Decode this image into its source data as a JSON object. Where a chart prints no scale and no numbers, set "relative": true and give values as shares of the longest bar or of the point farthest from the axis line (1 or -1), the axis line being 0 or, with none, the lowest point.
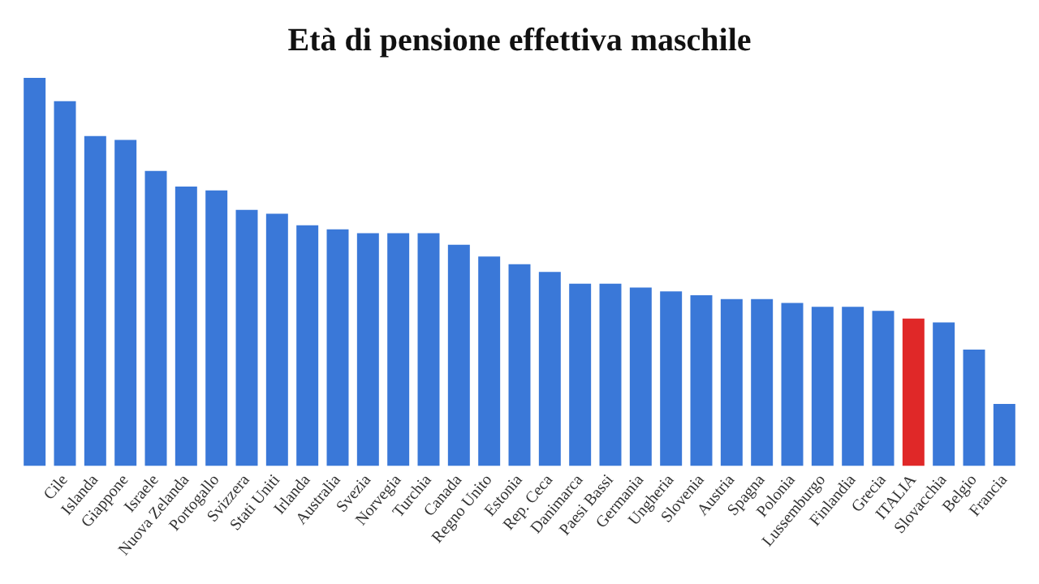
{
  "chart_data": {
    "type": "bar",
    "title": "Età di pensione effettiva maschile",
    "relative": true,
    "grid": false,
    "legend": false,
    "categories": [
      null,
      "Cile",
      "Islanda",
      "Giappone",
      "Israele",
      "Nuova Zelanda",
      "Portogallo",
      "Svizzera",
      "Stati Uniti",
      "Irlanda",
      "Australia",
      "Svezia",
      "Norvegia",
      "Turchia",
      "Canada",
      "Regno Unito",
      "Estonia",
      "Rep. Ceca",
      "Danimarca",
      "Paesi Bassi",
      "Germania",
      "Ungheria",
      "Slovenia",
      "Austria",
      "Spagna",
      "Polonia",
      "Lussemburgo",
      "Finlandia",
      "Grecia",
      "ITALIA",
      "Slovacchia",
      "Belgio",
      "Francia"
    ],
    "values": [
      1,
      0.94,
      0.85,
      0.84,
      0.76,
      0.72,
      0.71,
      0.66,
      0.65,
      0.62,
      0.61,
      0.6,
      0.6,
      0.6,
      0.57,
      0.54,
      0.52,
      0.5,
      0.47,
      0.47,
      0.46,
      0.45,
      0.44,
      0.43,
      0.43,
      0.42,
      0.41,
      0.41,
      0.4,
      0.38,
      0.37,
      0.3,
      0.16
    ],
    "colors": [
      "#3a78d8",
      "#3a78d8",
      "#3a78d8",
      "#3a78d8",
      "#3a78d8",
      "#3a78d8",
      "#3a78d8",
      "#3a78d8",
      "#3a78d8",
      "#3a78d8",
      "#3a78d8",
      "#3a78d8",
      "#3a78d8",
      "#3a78d8",
      "#3a78d8",
      "#3a78d8",
      "#3a78d8",
      "#3a78d8",
      "#3a78d8",
      "#3a78d8",
      "#3a78d8",
      "#3a78d8",
      "#3a78d8",
      "#3a78d8",
      "#3a78d8",
      "#3a78d8",
      "#3a78d8",
      "#3a78d8",
      "#3a78d8",
      "#e02828",
      "#3a78d8",
      "#3a78d8",
      "#3a78d8"
    ]
  }
}
